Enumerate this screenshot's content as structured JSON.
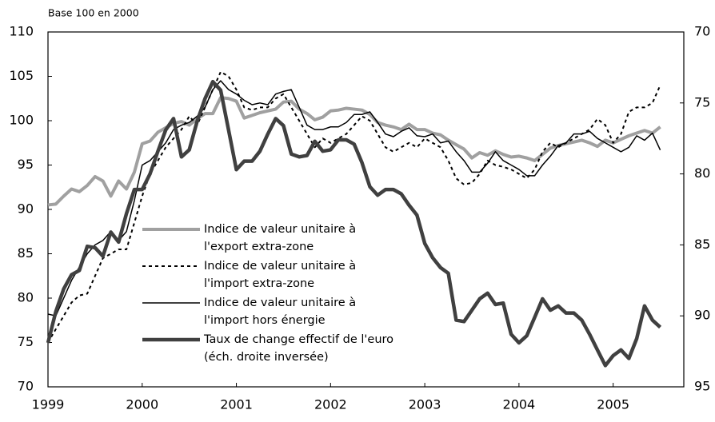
{
  "chart_data": {
    "type": "line",
    "axis_label": "Base 100 en 2000",
    "x": [
      1999,
      1999.083,
      1999.167,
      1999.25,
      1999.333,
      1999.417,
      1999.5,
      1999.583,
      1999.667,
      1999.75,
      1999.833,
      1999.917,
      2000,
      2000.083,
      2000.167,
      2000.25,
      2000.333,
      2000.417,
      2000.5,
      2000.583,
      2000.667,
      2000.75,
      2000.833,
      2000.917,
      2001,
      2001.083,
      2001.167,
      2001.25,
      2001.333,
      2001.417,
      2001.5,
      2001.583,
      2001.667,
      2001.75,
      2001.833,
      2001.917,
      2002,
      2002.083,
      2002.167,
      2002.25,
      2002.333,
      2002.417,
      2002.5,
      2002.583,
      2002.667,
      2002.75,
      2002.833,
      2002.917,
      2003,
      2003.083,
      2003.167,
      2003.25,
      2003.333,
      2003.417,
      2003.5,
      2003.583,
      2003.667,
      2003.75,
      2003.833,
      2003.917,
      2004,
      2004.083,
      2004.167,
      2004.25,
      2004.333,
      2004.417,
      2004.5,
      2004.583,
      2004.667,
      2004.75,
      2004.833,
      2004.917,
      2005,
      2005.083,
      2005.167,
      2005.25,
      2005.333,
      2005.417,
      2005.5
    ],
    "series": [
      {
        "name": "Indice de valeur unitaire à\nl'export extra-zone",
        "color": "#a0a0a0",
        "style": "solid",
        "width": 4,
        "values": [
          90.5,
          90.6,
          91.5,
          92.3,
          92.0,
          92.7,
          93.7,
          93.2,
          91.5,
          93.2,
          92.3,
          94.2,
          97.4,
          97.7,
          98.7,
          99.2,
          99.7,
          99.9,
          99.5,
          100.2,
          100.8,
          100.8,
          102.6,
          102.5,
          102.2,
          100.3,
          100.6,
          100.9,
          101.1,
          101.3,
          102.1,
          102.2,
          101.3,
          100.8,
          100.1,
          100.4,
          101.1,
          101.2,
          101.4,
          101.3,
          101.2,
          100.7,
          99.8,
          99.5,
          99.3,
          99.0,
          99.6,
          99.0,
          99.0,
          98.6,
          98.4,
          97.8,
          97.3,
          96.8,
          95.8,
          96.4,
          96.1,
          96.6,
          96.2,
          95.9,
          96.0,
          95.8,
          95.5,
          96.2,
          96.9,
          97.2,
          97.4,
          97.6,
          97.8,
          97.5,
          97.1,
          97.8,
          97.5,
          97.9,
          98.3,
          98.6,
          98.9,
          98.6,
          99.3
        ]
      },
      {
        "name": "Indice de valeur unitaire à\nl'import extra-zone",
        "color": "#000000",
        "style": "dotted",
        "width": 2,
        "values": [
          75.0,
          76.5,
          78.0,
          79.5,
          80.3,
          80.5,
          82.5,
          84.5,
          85.0,
          85.5,
          85.5,
          88.5,
          91.5,
          94.0,
          95.5,
          97.0,
          98.0,
          99.0,
          100.5,
          99.5,
          101.5,
          103.5,
          105.5,
          105.0,
          103.5,
          101.5,
          101.2,
          101.5,
          101.5,
          102.5,
          103.0,
          101.5,
          100.0,
          98.5,
          97.0,
          98.0,
          97.5,
          98.0,
          98.5,
          99.5,
          100.5,
          100.0,
          98.5,
          97.0,
          96.5,
          97.0,
          97.5,
          97.0,
          98.0,
          97.5,
          97.0,
          95.5,
          93.5,
          92.8,
          93.0,
          94.0,
          95.5,
          95.0,
          94.8,
          94.5,
          94.0,
          93.5,
          94.5,
          96.5,
          97.5,
          97.0,
          97.5,
          98.0,
          98.5,
          99.0,
          100.2,
          99.5,
          97.5,
          98.5,
          101.0,
          101.5,
          101.5,
          102.0,
          104.0
        ]
      },
      {
        "name": "Indice de valeur unitaire à\nl'import hors énergie",
        "color": "#000000",
        "style": "solid",
        "width": 1.5,
        "values": [
          78.2,
          78.0,
          80.0,
          82.0,
          83.5,
          85.0,
          86.0,
          86.5,
          87.5,
          86.5,
          87.5,
          91.0,
          95.0,
          95.5,
          96.5,
          97.5,
          99.0,
          99.5,
          99.8,
          100.5,
          101.5,
          103.5,
          104.5,
          103.5,
          103.0,
          102.3,
          101.8,
          102.0,
          101.8,
          103.0,
          103.3,
          103.5,
          101.5,
          99.5,
          99.0,
          99.0,
          99.3,
          99.3,
          99.8,
          100.7,
          100.7,
          101.0,
          99.8,
          98.5,
          98.2,
          98.8,
          99.2,
          98.3,
          98.2,
          98.5,
          97.5,
          97.7,
          96.5,
          95.5,
          94.2,
          94.2,
          95.2,
          96.5,
          95.5,
          95.0,
          94.5,
          93.8,
          93.8,
          95.0,
          96.0,
          97.2,
          97.5,
          98.5,
          98.5,
          98.8,
          98.0,
          97.5,
          97.0,
          96.5,
          97.0,
          98.3,
          97.8,
          98.6,
          96.7
        ]
      },
      {
        "name": "Taux de change effectif de l'euro\n(éch. droite inversée)",
        "color": "#404040",
        "style": "solid",
        "width": 4.5,
        "axis": "y2",
        "values": [
          91.9,
          89.7,
          88.1,
          87.1,
          86.8,
          85.1,
          85.2,
          85.8,
          84.1,
          84.8,
          82.8,
          81.1,
          81.1,
          80.0,
          78.4,
          76.9,
          76.1,
          78.8,
          78.3,
          76.3,
          74.7,
          73.5,
          74.1,
          76.9,
          79.7,
          79.1,
          79.1,
          78.4,
          77.2,
          76.1,
          76.6,
          78.6,
          78.8,
          78.7,
          77.7,
          78.4,
          78.3,
          77.6,
          77.6,
          77.9,
          79.2,
          80.9,
          81.5,
          81.1,
          81.1,
          81.4,
          82.2,
          82.9,
          84.9,
          85.9,
          86.6,
          87.0,
          90.3,
          90.4,
          89.6,
          88.8,
          88.4,
          89.2,
          89.1,
          91.3,
          91.9,
          91.4,
          90.1,
          88.8,
          89.6,
          89.3,
          89.8,
          89.8,
          90.3,
          91.3,
          92.4,
          93.5,
          92.8,
          92.4,
          93.0,
          91.6,
          89.3,
          90.3,
          90.8
        ]
      }
    ],
    "xlim": [
      1999,
      2005.75
    ],
    "xticks": [
      1999,
      2000,
      2001,
      2002,
      2003,
      2004,
      2005
    ],
    "ylim": [
      70,
      110
    ],
    "yticks": [
      70,
      75,
      80,
      85,
      90,
      95,
      100,
      105,
      110
    ],
    "y2lim": [
      70,
      95
    ],
    "y2ticks": [
      70,
      75,
      80,
      85,
      90,
      95
    ],
    "y2_inverted": true,
    "legend": "center left",
    "grid": false
  }
}
